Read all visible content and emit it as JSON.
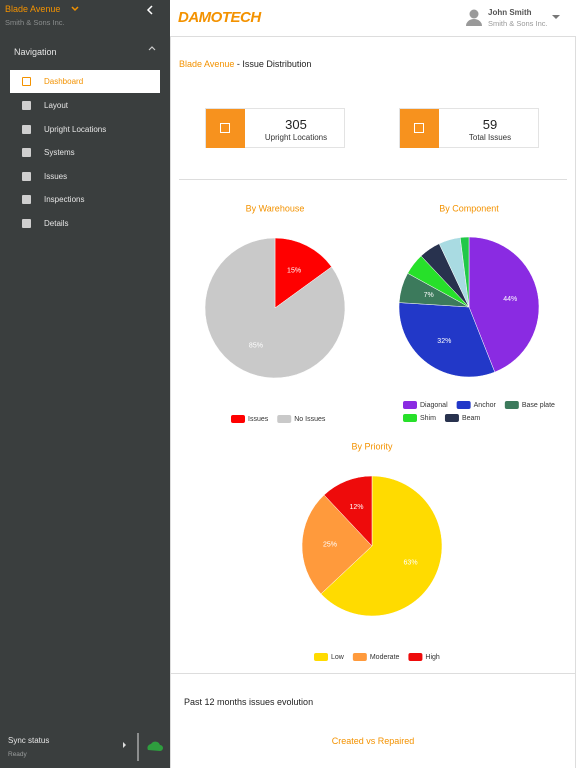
{
  "sidebar": {
    "site": "Blade Avenue",
    "company": "Smith & Sons Inc.",
    "nav_title": "Navigation",
    "items": [
      "Dashboard",
      "Layout",
      "Upright Locations",
      "Systems",
      "Issues",
      "Inspections",
      "Details"
    ],
    "sync_label": "Sync status",
    "sync_state": "Ready"
  },
  "header": {
    "logo": "DAMOTECH",
    "user_name": "John Smith",
    "user_company": "Smith & Sons Inc."
  },
  "page": {
    "site": "Blade Avenue",
    "title": "- Issue Distribution"
  },
  "stats": [
    {
      "value": 305,
      "label": "Upright Locations"
    },
    {
      "value": 59,
      "label": "Total Issues"
    }
  ],
  "chart_data": [
    {
      "type": "pie",
      "title": "By Warehouse",
      "categories": [
        "Issues",
        "No Issues"
      ],
      "values": [
        15,
        85
      ],
      "value_labels": [
        "15%",
        "85%"
      ],
      "colors": [
        "#ff0000",
        "#c9c9c9"
      ]
    },
    {
      "type": "pie",
      "title": "By Component",
      "categories": [
        "Diagonal",
        "Anchor",
        "Base plate",
        "Shim",
        "Beam",
        null,
        null
      ],
      "values": [
        44,
        32,
        7,
        5,
        5,
        5,
        2
      ],
      "value_labels": [
        "44%",
        "32%",
        "7%",
        null,
        null,
        null,
        null
      ],
      "colors": [
        "#8a2be2",
        "#2238c8",
        "#3c7a5c",
        "#27e02a",
        "#28324e",
        "#a9dbe2",
        "#22c84a"
      ]
    },
    {
      "type": "pie",
      "title": "By Priority",
      "categories": [
        "Low",
        "Moderate",
        "High"
      ],
      "values": [
        63,
        25,
        12
      ],
      "value_labels": [
        "63%",
        "25%",
        "12%"
      ],
      "colors": [
        "#ffdb00",
        "#ff9a3c",
        "#ee0b0b"
      ]
    }
  ],
  "evolution": {
    "title": "Past 12 months issues evolution",
    "chart_title": "Created vs Repaired"
  }
}
